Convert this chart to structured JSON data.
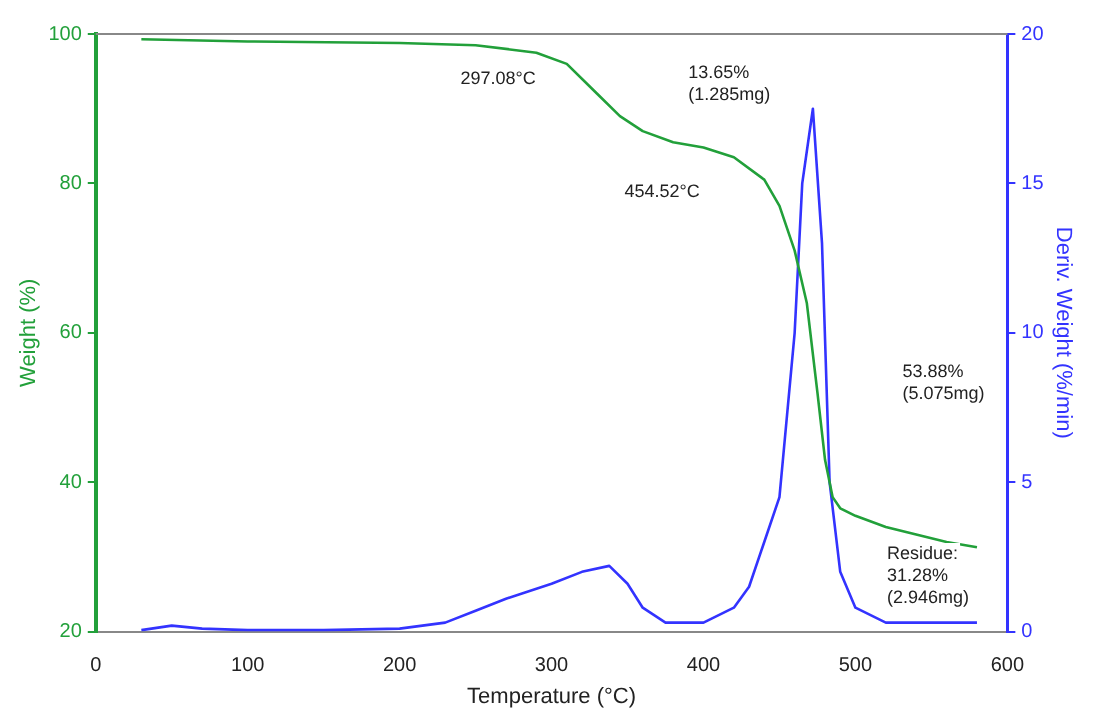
{
  "chart_data": {
    "type": "line",
    "xlabel": "Temperature (°C)",
    "ylabel": "Weight (%)",
    "y2label": "Deriv. Weight (%/min)",
    "xlim": [
      0,
      600
    ],
    "xticks": [
      0,
      100,
      200,
      300,
      400,
      500,
      600
    ],
    "ylim": [
      20,
      100
    ],
    "yticks": [
      20,
      40,
      60,
      80,
      100
    ],
    "y2lim": [
      0,
      20
    ],
    "y2ticks": [
      0,
      5,
      10,
      15,
      20
    ],
    "grid": false,
    "legend": false,
    "marker": "none",
    "line_style": "solid",
    "series": [
      {
        "color": "#22a03a",
        "x": [
          30,
          100,
          200,
          250,
          290,
          310,
          330,
          345,
          360,
          380,
          400,
          420,
          440,
          450,
          460,
          468,
          475,
          480,
          485,
          490,
          500,
          520,
          540,
          560,
          580
        ],
        "values": [
          99.3,
          99.0,
          98.8,
          98.5,
          97.5,
          96,
          92,
          89,
          87,
          85.5,
          84.8,
          83.5,
          80.5,
          77,
          71,
          64,
          52,
          43,
          38,
          36.5,
          35.5,
          34,
          33,
          32,
          31.3
        ]
      },
      {
        "color": "#3333ff",
        "axis": "y2",
        "x": [
          30,
          50,
          70,
          100,
          150,
          200,
          230,
          250,
          270,
          300,
          320,
          338,
          350,
          360,
          375,
          400,
          420,
          430,
          440,
          450,
          460,
          465,
          472,
          478,
          483,
          490,
          500,
          520,
          580
        ],
        "values": [
          0.05,
          0.2,
          0.1,
          0.05,
          0.05,
          0.1,
          0.3,
          0.7,
          1.1,
          1.6,
          2.0,
          2.2,
          1.6,
          0.8,
          0.3,
          0.3,
          0.8,
          1.5,
          3.0,
          4.5,
          10,
          15,
          17.5,
          13,
          5,
          2,
          0.8,
          0.3,
          0.3
        ]
      }
    ],
    "annotations": [
      "297.08°C",
      "13.65%\n(1.285mg)",
      "454.52°C",
      "53.88%\n(5.075mg)",
      "Residue:\n31.28%\n(2.946mg)"
    ]
  }
}
